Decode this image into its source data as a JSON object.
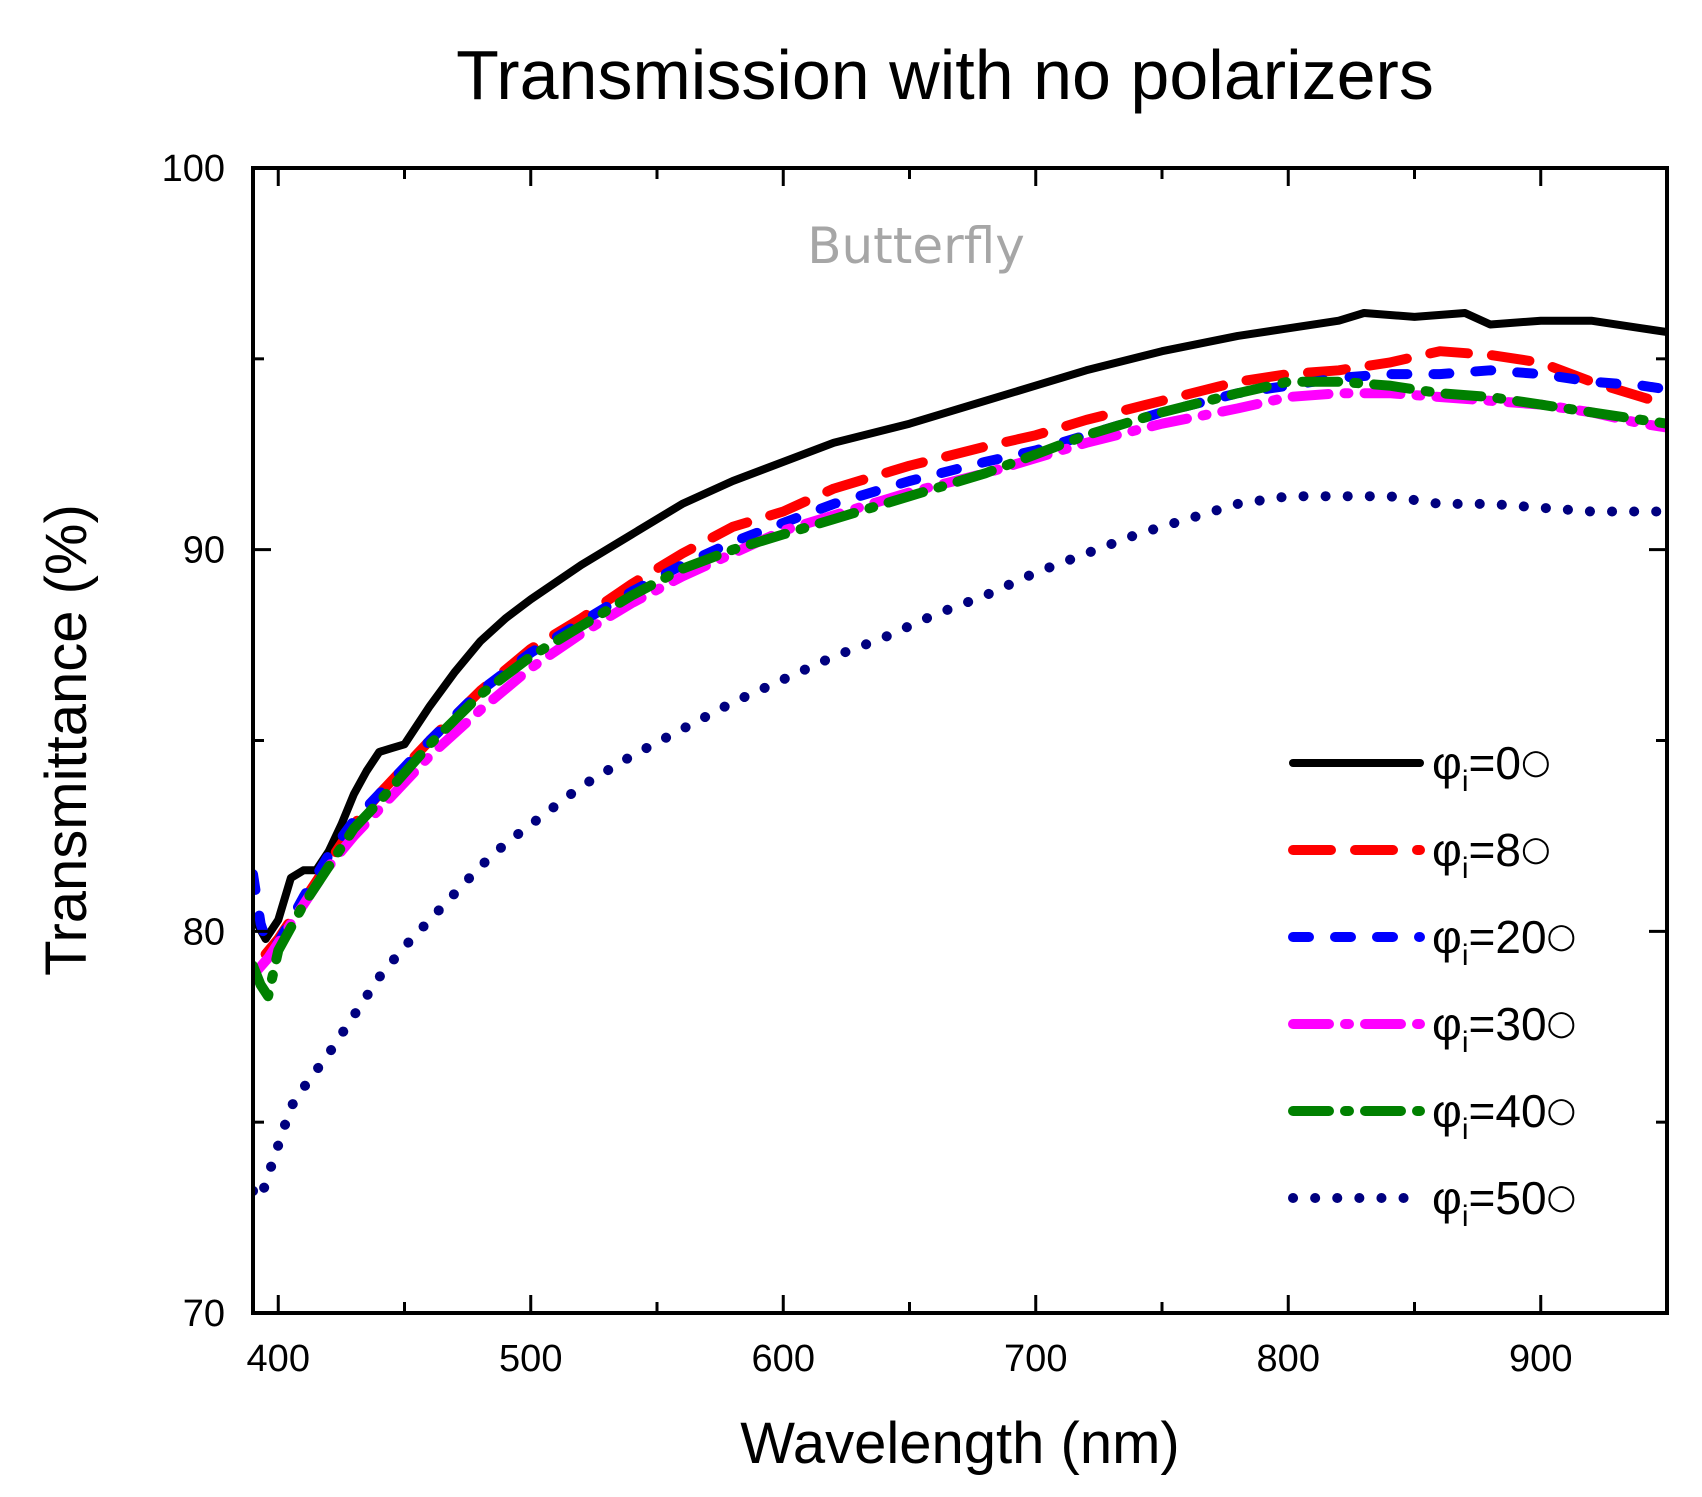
{
  "chart_data": {
    "type": "line",
    "title": "Transmission with no polarizers",
    "xlabel": "Wavelength (nm)",
    "ylabel": "Transmittance (%)",
    "annotation": "Butterfly",
    "xlim": [
      390,
      950
    ],
    "ylim": [
      70,
      100
    ],
    "xticks": [
      400,
      500,
      600,
      700,
      800,
      900
    ],
    "yticks": [
      70,
      80,
      90,
      100
    ],
    "x_tick_labels": [
      "400",
      "500",
      "600",
      "700",
      "800",
      "900"
    ],
    "y_tick_labels": [
      "70",
      "80",
      "90",
      "100"
    ],
    "grid": false,
    "legend_position": "lower-right",
    "series": [
      {
        "name": "φi=0°",
        "legend_prefix": "φ",
        "legend_sub": "i",
        "legend_suffix": "=0",
        "legend_deg": "○",
        "color": "#000000",
        "style": "solid",
        "x": [
          390,
          395,
          400,
          405,
          410,
          415,
          420,
          425,
          430,
          435,
          440,
          445,
          450,
          460,
          470,
          480,
          490,
          500,
          520,
          540,
          560,
          580,
          600,
          620,
          650,
          680,
          700,
          720,
          750,
          780,
          800,
          820,
          830,
          850,
          870,
          880,
          900,
          920,
          940,
          950
        ],
        "y": [
          80.4,
          79.8,
          80.3,
          81.4,
          81.6,
          81.6,
          82.1,
          82.8,
          83.6,
          84.2,
          84.7,
          84.8,
          84.9,
          85.9,
          86.8,
          87.6,
          88.2,
          88.7,
          89.6,
          90.4,
          91.2,
          91.8,
          92.3,
          92.8,
          93.3,
          93.9,
          94.3,
          94.7,
          95.2,
          95.6,
          95.8,
          96.0,
          96.2,
          96.1,
          96.2,
          95.9,
          96.0,
          96.0,
          95.8,
          95.7
        ]
      },
      {
        "name": "φi=8°",
        "legend_prefix": "φ",
        "legend_sub": "i",
        "legend_suffix": "=8",
        "legend_deg": "○",
        "color": "#ff0000",
        "style": "longdash",
        "x": [
          395,
          400,
          410,
          420,
          430,
          440,
          460,
          480,
          500,
          520,
          540,
          560,
          580,
          600,
          620,
          650,
          680,
          700,
          720,
          750,
          780,
          800,
          820,
          840,
          860,
          880,
          900,
          920,
          940,
          950
        ],
        "y": [
          79.4,
          79.8,
          80.8,
          81.8,
          82.8,
          83.6,
          85.0,
          86.3,
          87.4,
          88.2,
          89.1,
          89.9,
          90.6,
          91.0,
          91.6,
          92.2,
          92.7,
          93.0,
          93.4,
          93.9,
          94.4,
          94.6,
          94.7,
          94.9,
          95.2,
          95.1,
          94.9,
          94.4,
          94.0,
          93.8
        ]
      },
      {
        "name": "φi=20°",
        "legend_prefix": "φ",
        "legend_sub": "i",
        "legend_suffix": "=20",
        "legend_deg": "○",
        "color": "#0000ff",
        "style": "dash",
        "x": [
          390,
          393,
          396,
          400,
          410,
          420,
          430,
          440,
          460,
          480,
          500,
          520,
          540,
          560,
          580,
          600,
          620,
          650,
          680,
          700,
          720,
          750,
          780,
          800,
          820,
          840,
          860,
          880,
          900,
          920,
          940,
          950
        ],
        "y": [
          81.5,
          80.2,
          79.6,
          79.7,
          80.9,
          82.0,
          82.9,
          83.6,
          85.0,
          86.3,
          87.3,
          88.1,
          88.9,
          89.6,
          90.2,
          90.7,
          91.2,
          91.8,
          92.3,
          92.6,
          93.0,
          93.6,
          94.1,
          94.3,
          94.5,
          94.6,
          94.6,
          94.7,
          94.6,
          94.4,
          94.3,
          94.2
        ]
      },
      {
        "name": "φi=30°",
        "legend_prefix": "φ",
        "legend_sub": "i",
        "legend_suffix": "=30",
        "legend_deg": "○",
        "color": "#ff00ff",
        "style": "dashdot",
        "x": [
          392,
          396,
          400,
          410,
          420,
          430,
          440,
          460,
          480,
          500,
          520,
          540,
          560,
          580,
          600,
          620,
          650,
          680,
          700,
          720,
          750,
          780,
          800,
          820,
          840,
          860,
          880,
          900,
          920,
          940,
          950
        ],
        "y": [
          79.0,
          79.3,
          79.7,
          80.7,
          81.7,
          82.5,
          83.2,
          84.6,
          85.8,
          86.9,
          87.8,
          88.6,
          89.3,
          89.9,
          90.5,
          90.9,
          91.5,
          92.0,
          92.4,
          92.8,
          93.3,
          93.7,
          94.0,
          94.1,
          94.1,
          94.0,
          93.9,
          93.8,
          93.6,
          93.3,
          93.2
        ]
      },
      {
        "name": "φi=40°",
        "legend_prefix": "φ",
        "legend_sub": "i",
        "legend_suffix": "=40",
        "legend_deg": "○",
        "color": "#008000",
        "style": "dashdot",
        "x": [
          390,
          393,
          396,
          400,
          410,
          420,
          430,
          440,
          460,
          480,
          500,
          520,
          540,
          560,
          580,
          600,
          620,
          650,
          680,
          700,
          720,
          750,
          780,
          800,
          820,
          840,
          860,
          880,
          900,
          920,
          940,
          950
        ],
        "y": [
          79.1,
          78.6,
          78.3,
          79.5,
          80.7,
          81.7,
          82.7,
          83.4,
          84.9,
          86.2,
          87.2,
          88.0,
          88.8,
          89.5,
          90.0,
          90.4,
          90.8,
          91.4,
          92.0,
          92.5,
          93.0,
          93.6,
          94.1,
          94.4,
          94.4,
          94.3,
          94.1,
          94.0,
          93.8,
          93.6,
          93.4,
          93.3
        ]
      },
      {
        "name": "φi=50°",
        "legend_prefix": "φ",
        "legend_sub": "i",
        "legend_suffix": "=50",
        "legend_deg": "○",
        "color": "#00007f",
        "style": "dot",
        "x": [
          390,
          393,
          396,
          400,
          405,
          410,
          420,
          430,
          440,
          450,
          460,
          470,
          480,
          490,
          500,
          520,
          540,
          560,
          580,
          600,
          620,
          640,
          660,
          680,
          700,
          720,
          740,
          760,
          780,
          800,
          820,
          840,
          860,
          880,
          900,
          920,
          940,
          950
        ],
        "y": [
          73.2,
          73.0,
          73.6,
          74.4,
          75.4,
          75.9,
          76.8,
          77.8,
          78.8,
          79.6,
          80.3,
          81.0,
          81.7,
          82.3,
          82.8,
          83.8,
          84.6,
          85.3,
          86.0,
          86.6,
          87.2,
          87.7,
          88.3,
          88.8,
          89.4,
          89.9,
          90.4,
          90.8,
          91.2,
          91.4,
          91.4,
          91.4,
          91.2,
          91.2,
          91.1,
          91.0,
          91.0,
          91.0
        ]
      }
    ]
  }
}
